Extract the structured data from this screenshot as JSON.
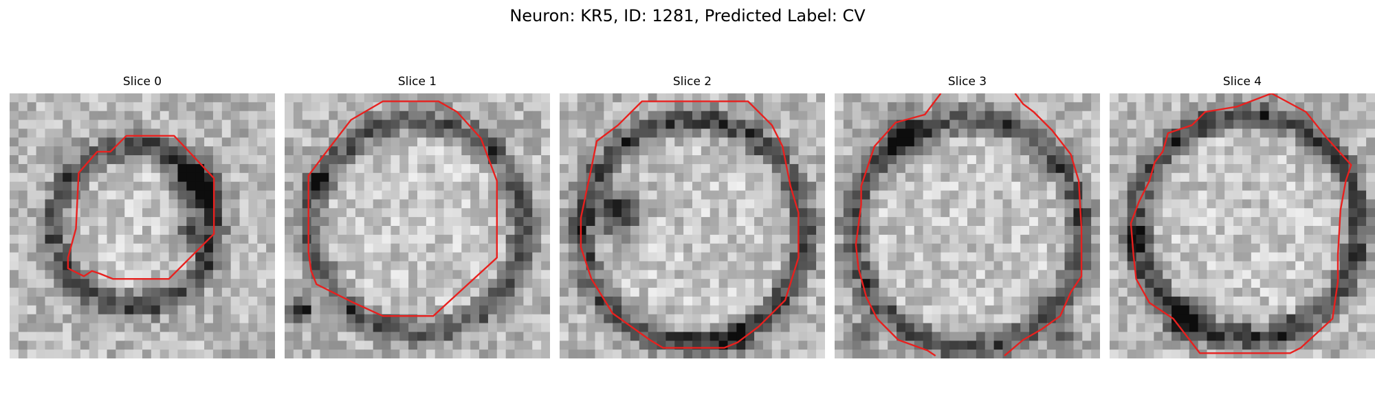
{
  "figure": {
    "title": "Neuron: KR5, ID: 1281, Predicted Label: CV",
    "panels": [
      {
        "label": "Slice 0"
      },
      {
        "label": "Slice 1"
      },
      {
        "label": "Slice 2"
      },
      {
        "label": "Slice 3"
      },
      {
        "label": "Slice 4"
      }
    ],
    "contour_color": "#e8201e",
    "colormap": "grayscale"
  }
}
